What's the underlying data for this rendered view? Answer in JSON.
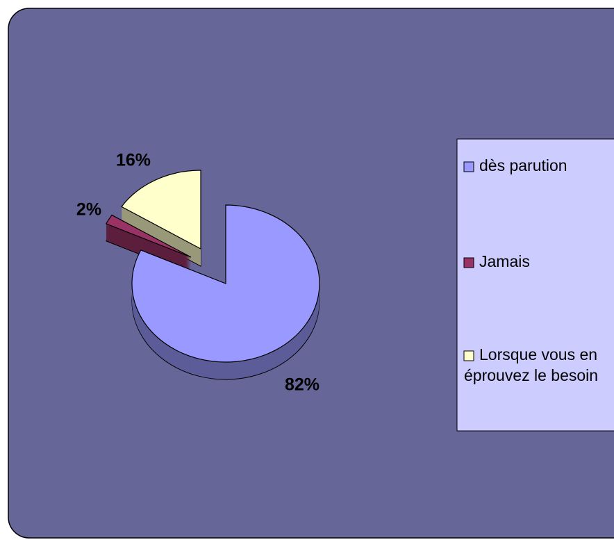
{
  "chart_data": {
    "type": "pie",
    "categories": [
      "dès parution",
      "Jamais",
      "Lorsque vous en éprouvez le besoin"
    ],
    "values": [
      82,
      2,
      16
    ],
    "value_labels": [
      "82%",
      "2%",
      "16%"
    ],
    "colors": [
      "#9999ff",
      "#993366",
      "#ffffcc"
    ],
    "legend": "right"
  }
}
